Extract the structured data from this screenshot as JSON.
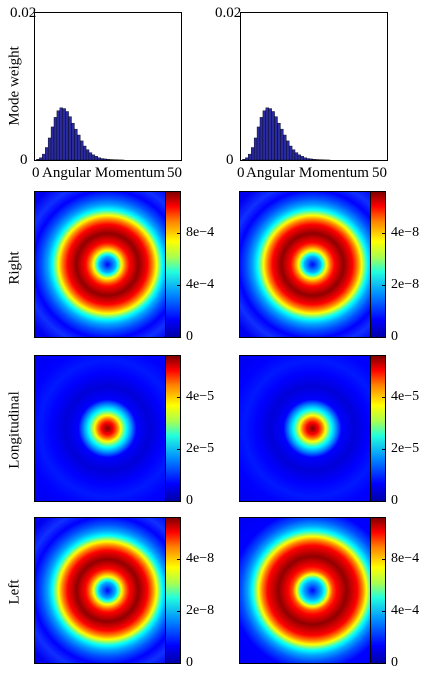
{
  "chart_data": [
    {
      "type": "bar",
      "position_label": "top-left",
      "ylabel": "Mode weight",
      "xlabel": "Angular Momentum",
      "xlim": [
        0,
        50
      ],
      "ylim": [
        0,
        0.02
      ],
      "x_ticks": [
        "0",
        "50"
      ],
      "y_ticks": [
        "0",
        "0.02"
      ],
      "x": [
        1,
        2,
        3,
        4,
        5,
        6,
        7,
        8,
        9,
        10,
        11,
        12,
        13,
        14,
        15,
        16,
        17,
        18,
        19,
        20,
        21,
        22,
        23,
        24,
        25,
        26,
        27,
        28,
        29,
        30
      ],
      "values": [
        0.0001,
        0.0003,
        0.0008,
        0.0017,
        0.003,
        0.0045,
        0.0058,
        0.0067,
        0.0071,
        0.007,
        0.0066,
        0.0059,
        0.005,
        0.0042,
        0.0034,
        0.0026,
        0.0019,
        0.0014,
        0.001,
        0.0007,
        0.0005,
        0.0003,
        0.0002,
        0.00015,
        0.0001,
        7e-05,
        5e-05,
        3e-05,
        2e-05,
        1e-05
      ],
      "bar_color": "#2a2aa0"
    },
    {
      "type": "bar",
      "position_label": "top-right",
      "ylabel": "",
      "xlabel": "Angular Momentum",
      "xlim": [
        0,
        50
      ],
      "ylim": [
        0,
        0.02
      ],
      "x_ticks": [
        "0",
        "50"
      ],
      "y_ticks": [
        "0",
        "0.02"
      ],
      "x": [
        1,
        2,
        3,
        4,
        5,
        6,
        7,
        8,
        9,
        10,
        11,
        12,
        13,
        14,
        15,
        16,
        17,
        18,
        19,
        20,
        21,
        22,
        23,
        24,
        25,
        26,
        27,
        28,
        29,
        30
      ],
      "values": [
        0.0001,
        0.0003,
        0.0008,
        0.0017,
        0.003,
        0.0045,
        0.0058,
        0.0067,
        0.0071,
        0.007,
        0.0066,
        0.0059,
        0.005,
        0.0042,
        0.0034,
        0.0026,
        0.0019,
        0.0014,
        0.001,
        0.0007,
        0.0005,
        0.0003,
        0.0002,
        0.00015,
        0.0001,
        7e-05,
        5e-05,
        3e-05,
        2e-05,
        1e-05
      ],
      "bar_color": "#2a2aa0"
    },
    {
      "type": "heatmap",
      "row_label": "Right",
      "column": "left",
      "pattern": "ring",
      "colorbar_ticks": [
        "0",
        "4e−4",
        "8e−4"
      ]
    },
    {
      "type": "heatmap",
      "row_label": "Right",
      "column": "right",
      "pattern": "ring",
      "colorbar_ticks": [
        "0",
        "2e−8",
        "4e−8"
      ]
    },
    {
      "type": "heatmap",
      "row_label": "Longitudinal",
      "column": "left",
      "pattern": "spot",
      "colorbar_ticks": [
        "0",
        "2e−5",
        "4e−5"
      ]
    },
    {
      "type": "heatmap",
      "row_label": "Longitudinal",
      "column": "right",
      "pattern": "spot",
      "colorbar_ticks": [
        "0",
        "2e−5",
        "4e−5"
      ]
    },
    {
      "type": "heatmap",
      "row_label": "Left",
      "column": "left",
      "pattern": "ring",
      "colorbar_ticks": [
        "0",
        "2e−8",
        "4e−8"
      ]
    },
    {
      "type": "heatmap",
      "row_label": "Left",
      "column": "right",
      "pattern": "wide-ring",
      "colorbar_ticks": [
        "0",
        "4e−4",
        "8e−4"
      ]
    }
  ],
  "row_labels": {
    "right": "Right",
    "longitudinal": "Longitudinal",
    "left": "Left"
  }
}
